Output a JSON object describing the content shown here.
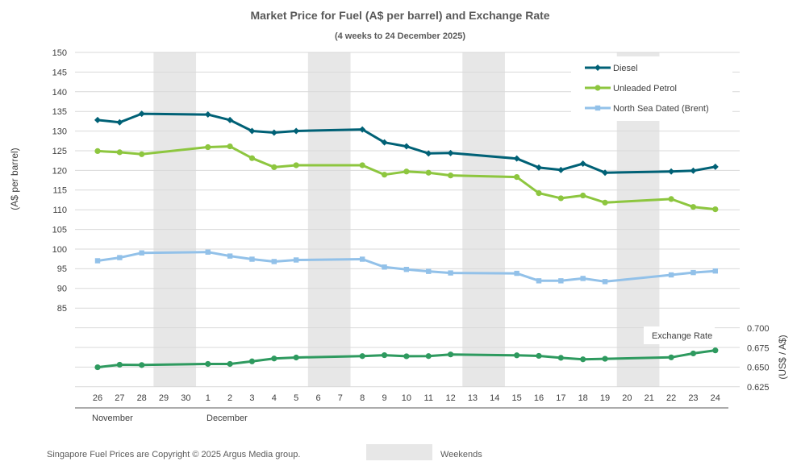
{
  "chart_data": {
    "type": "line",
    "title": "Market Price for Fuel (A$ per barrel) and Exchange Rate",
    "subtitle": "(4 weeks to 24 December 2025)",
    "ylabel": "(A$ per barrel)",
    "y2label": "(US$ / A$)",
    "ylim": [
      85,
      150
    ],
    "yticks": [
      85,
      90,
      95,
      100,
      105,
      110,
      115,
      120,
      125,
      130,
      135,
      140,
      145,
      150
    ],
    "y2lim": [
      0.625,
      0.7
    ],
    "y2ticks": [
      "0.625",
      "0.650",
      "0.675",
      "0.700"
    ],
    "categories": [
      "26",
      "27",
      "28",
      "29",
      "30",
      "1",
      "2",
      "3",
      "4",
      "5",
      "6",
      "7",
      "8",
      "9",
      "10",
      "11",
      "12",
      "13",
      "14",
      "15",
      "16",
      "17",
      "18",
      "19",
      "20",
      "21",
      "22",
      "23",
      "24"
    ],
    "months": [
      "November",
      "December"
    ],
    "weekend_indices": [
      [
        3,
        4
      ],
      [
        10,
        11
      ],
      [
        17,
        18
      ],
      [
        24,
        25
      ]
    ],
    "series": [
      {
        "name": "Diesel",
        "color": "#006176",
        "marker": "diamond",
        "values": [
          132.8,
          132.2,
          134.4,
          null,
          null,
          134.2,
          132.8,
          130.0,
          129.6,
          130.0,
          null,
          null,
          130.4,
          127.1,
          126.1,
          124.3,
          124.4,
          null,
          null,
          123.0,
          120.7,
          120.1,
          121.7,
          119.4,
          null,
          null,
          119.7,
          119.9,
          120.9
        ],
        "markers": [
          1,
          1,
          1,
          0,
          0,
          1,
          1,
          1,
          1,
          1,
          0,
          0,
          1,
          1,
          1,
          1,
          1,
          0,
          0,
          1,
          1,
          1,
          1,
          1,
          0,
          0,
          1,
          1,
          1
        ]
      },
      {
        "name": "Unleaded Petrol",
        "color": "#8DC63F",
        "marker": "circle",
        "values": [
          124.9,
          124.6,
          124.1,
          null,
          null,
          125.9,
          126.1,
          123.1,
          120.8,
          121.3,
          null,
          null,
          121.3,
          118.9,
          119.7,
          119.4,
          118.7,
          null,
          null,
          118.3,
          114.2,
          112.9,
          113.6,
          111.8,
          null,
          null,
          112.7,
          110.7,
          110.1
        ],
        "markers": [
          1,
          1,
          1,
          0,
          0,
          1,
          1,
          1,
          1,
          1,
          0,
          0,
          1,
          1,
          1,
          1,
          1,
          0,
          0,
          1,
          1,
          1,
          1,
          1,
          0,
          0,
          1,
          1,
          1
        ]
      },
      {
        "name": "North Sea Dated (Brent)",
        "color": "#92C1E9",
        "marker": "square",
        "values": [
          97.0,
          97.8,
          99.0,
          null,
          null,
          99.2,
          98.2,
          97.4,
          96.8,
          97.2,
          null,
          null,
          97.4,
          95.4,
          94.8,
          94.3,
          93.9,
          null,
          null,
          93.8,
          91.9,
          91.9,
          92.5,
          91.7,
          null,
          null,
          93.4,
          94.0,
          94.4
        ],
        "markers": [
          1,
          1,
          1,
          0,
          0,
          1,
          1,
          1,
          1,
          1,
          0,
          0,
          1,
          1,
          1,
          1,
          1,
          0,
          0,
          1,
          1,
          1,
          1,
          1,
          0,
          0,
          1,
          1,
          1
        ]
      },
      {
        "name": "Exchange Rate",
        "color": "#2E9A5F",
        "marker": "circle",
        "axis": "right",
        "values": [
          0.6501,
          0.6533,
          0.6529,
          null,
          null,
          0.6543,
          0.6543,
          0.6576,
          0.6612,
          0.6625,
          null,
          null,
          0.6643,
          0.6655,
          0.6641,
          0.6643,
          0.6664,
          null,
          null,
          0.6653,
          0.6646,
          0.6621,
          0.6602,
          0.6609,
          null,
          null,
          0.6627,
          0.6677,
          0.6716
        ],
        "markers": [
          1,
          1,
          1,
          0,
          0,
          1,
          1,
          1,
          1,
          1,
          0,
          0,
          1,
          1,
          1,
          1,
          1,
          0,
          0,
          1,
          1,
          1,
          1,
          1,
          0,
          0,
          1,
          1,
          1
        ]
      }
    ],
    "legend": [
      "Diesel",
      "Unleaded Petrol",
      "North Sea Dated (Brent)"
    ],
    "legend_position": "top-right",
    "exchange_label": "Exchange Rate",
    "copyright": "Singapore Fuel Prices are Copyright © 2025 Argus Media group.",
    "weekends_label": "Weekends"
  }
}
